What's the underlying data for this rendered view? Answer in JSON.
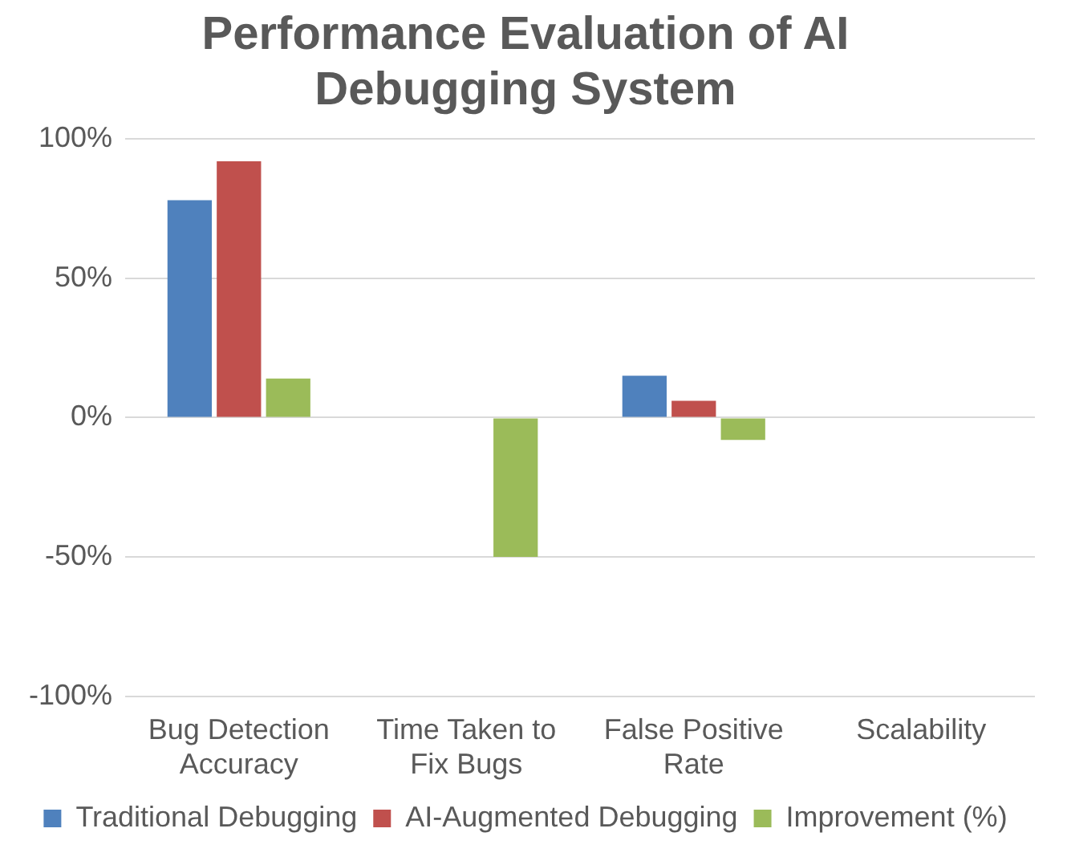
{
  "chart_data": {
    "type": "bar",
    "title": "Performance Evaluation of AI Debugging System",
    "categories": [
      [
        "Bug Detection",
        "Accuracy"
      ],
      [
        "Time Taken to",
        "Fix Bugs"
      ],
      [
        "False Positive",
        "Rate"
      ],
      "Scalability"
    ],
    "series": [
      {
        "name": "Traditional Debugging",
        "color": "#4f81bd",
        "values": [
          78,
          null,
          15,
          null
        ]
      },
      {
        "name": "AI-Augmented Debugging",
        "color": "#c0504d",
        "values": [
          92,
          null,
          6,
          null
        ]
      },
      {
        "name": "Improvement (%)",
        "color": "#9bbb59",
        "values": [
          14,
          -50,
          -8,
          null
        ]
      }
    ],
    "ylim": [
      -100,
      100
    ],
    "yticks": [
      {
        "value": -100,
        "label": "-100%"
      },
      {
        "value": -50,
        "label": "-50%"
      },
      {
        "value": 0,
        "label": "0%"
      },
      {
        "value": 50,
        "label": "50%"
      },
      {
        "value": 100,
        "label": "100%"
      }
    ],
    "grid": "y",
    "legend": "bottom"
  }
}
